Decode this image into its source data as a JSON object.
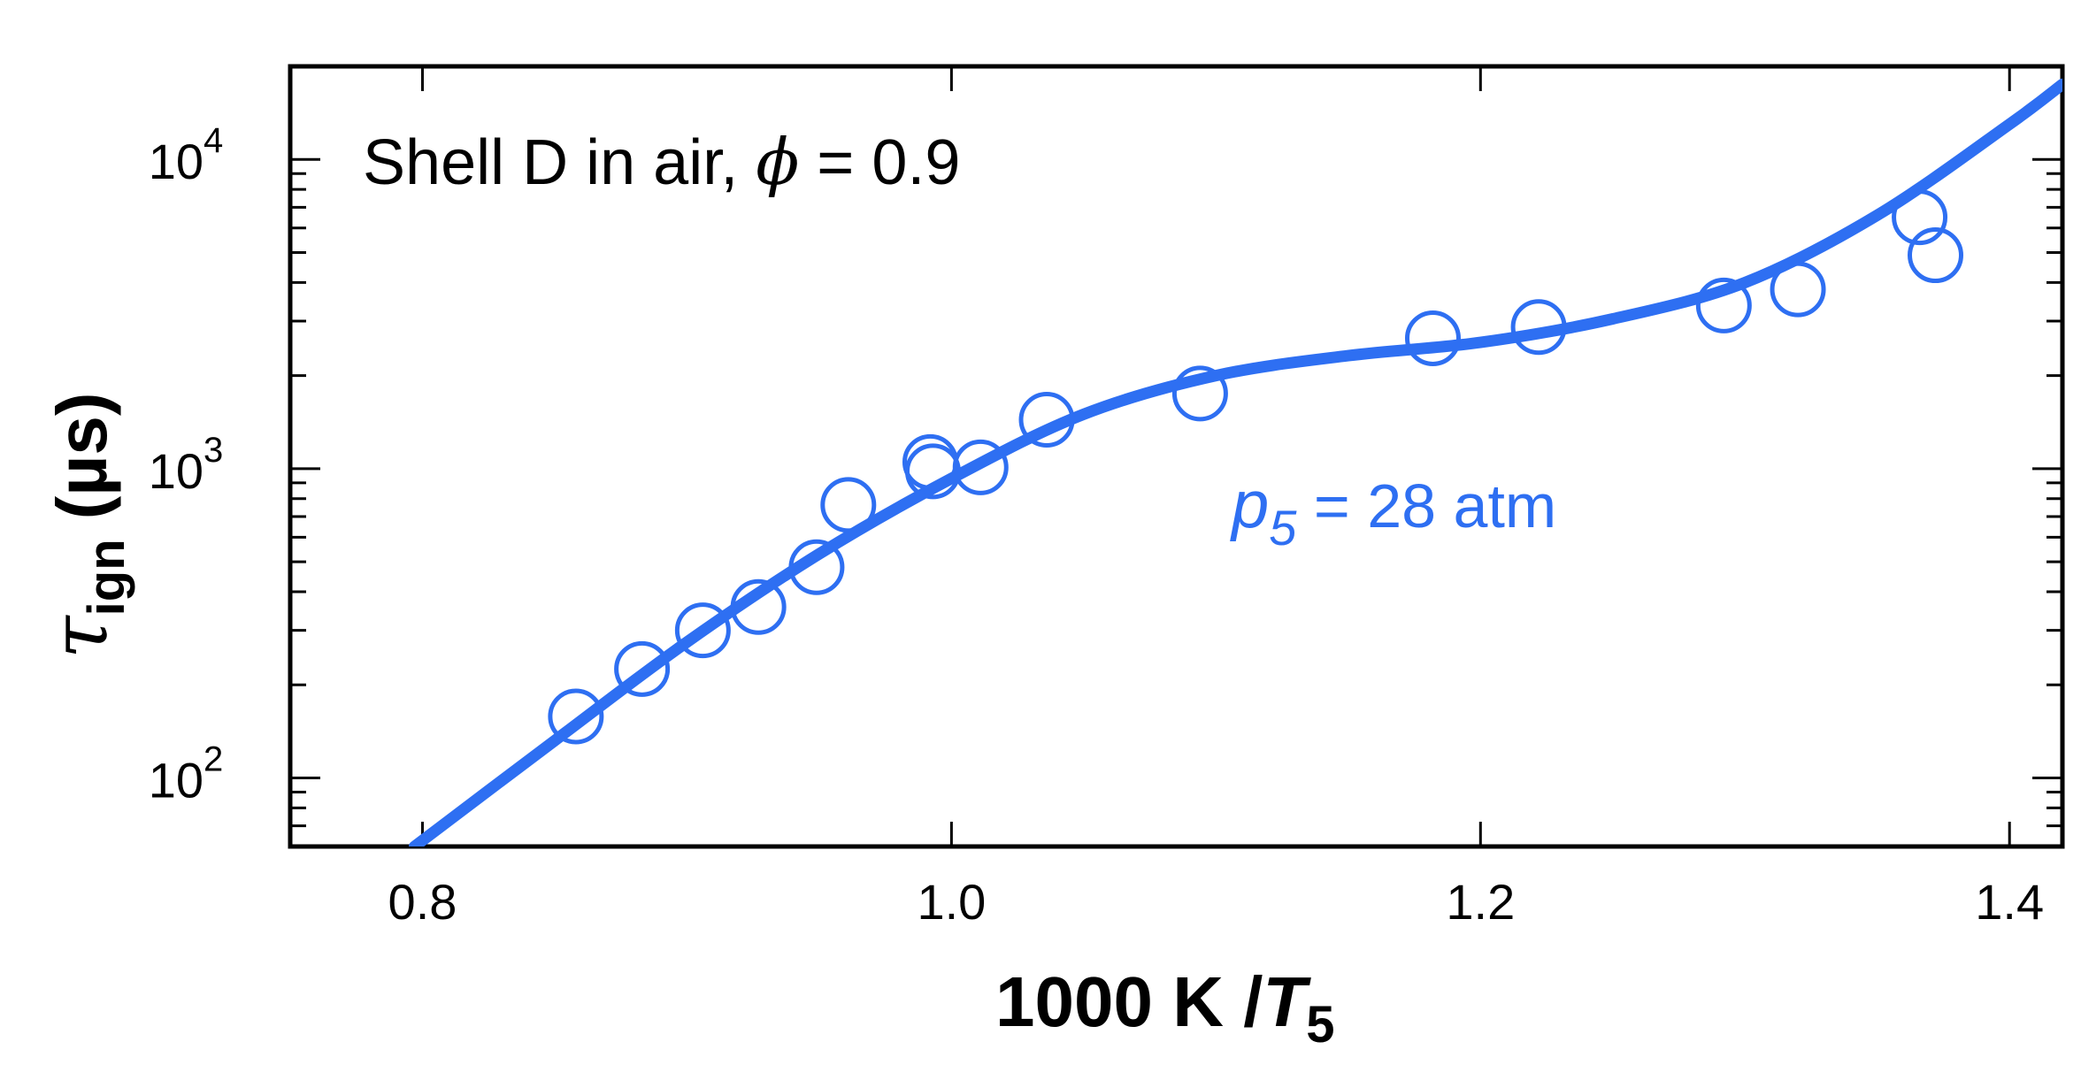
{
  "chart_data": {
    "type": "scatter",
    "title": "Shell D in air, ϕ = 0.9",
    "title_parts": {
      "prefix": "Shell D in air, ",
      "symbol": "ϕ",
      "suffix": " = 0.9"
    },
    "xlabel": "1000 K /T5",
    "xlabel_parts": {
      "prefix": "1000 K /",
      "var": "T",
      "sub": "5"
    },
    "ylabel": "τign (µs)",
    "ylabel_parts": {
      "symbol": "τ",
      "sub": "ign",
      "unit": "(µs)"
    },
    "x_range": [
      0.75,
      1.42
    ],
    "y_range": [
      60,
      20000
    ],
    "y_scale": "log",
    "x_ticks": [
      0.8,
      1.0,
      1.2,
      1.4
    ],
    "x_tick_labels": [
      "0.8",
      "1.0",
      "1.2",
      "1.4"
    ],
    "y_tick_labels": [
      {
        "value": 100,
        "base": "10",
        "exp": "2"
      },
      {
        "value": 1000,
        "base": "10",
        "exp": "3"
      },
      {
        "value": 10000,
        "base": "10",
        "exp": "4"
      }
    ],
    "color": "#2e6ff2",
    "annotation": {
      "var": "p",
      "sub": "5",
      "text": " = 28 atm"
    },
    "series": [
      {
        "kind": "markers",
        "points": [
          [
            0.858,
            158
          ],
          [
            0.883,
            225
          ],
          [
            0.906,
            300
          ],
          [
            0.927,
            357
          ],
          [
            0.949,
            480
          ],
          [
            0.961,
            763
          ],
          [
            0.992,
            1050
          ],
          [
            0.993,
            980
          ],
          [
            1.011,
            1010
          ],
          [
            1.036,
            1440
          ],
          [
            1.094,
            1750
          ],
          [
            1.182,
            2640
          ],
          [
            1.222,
            2870
          ],
          [
            1.292,
            3370
          ],
          [
            1.32,
            3800
          ],
          [
            1.366,
            6500
          ],
          [
            1.372,
            4900
          ]
        ]
      },
      {
        "kind": "line",
        "points": [
          [
            0.797,
            60
          ],
          [
            0.85,
            132
          ],
          [
            0.9,
            275
          ],
          [
            0.95,
            530
          ],
          [
            1.0,
            930
          ],
          [
            1.05,
            1500
          ],
          [
            1.1,
            2000
          ],
          [
            1.15,
            2320
          ],
          [
            1.2,
            2560
          ],
          [
            1.25,
            3050
          ],
          [
            1.3,
            4000
          ],
          [
            1.35,
            6600
          ],
          [
            1.4,
            13000
          ],
          [
            1.42,
            17500
          ]
        ]
      }
    ]
  }
}
